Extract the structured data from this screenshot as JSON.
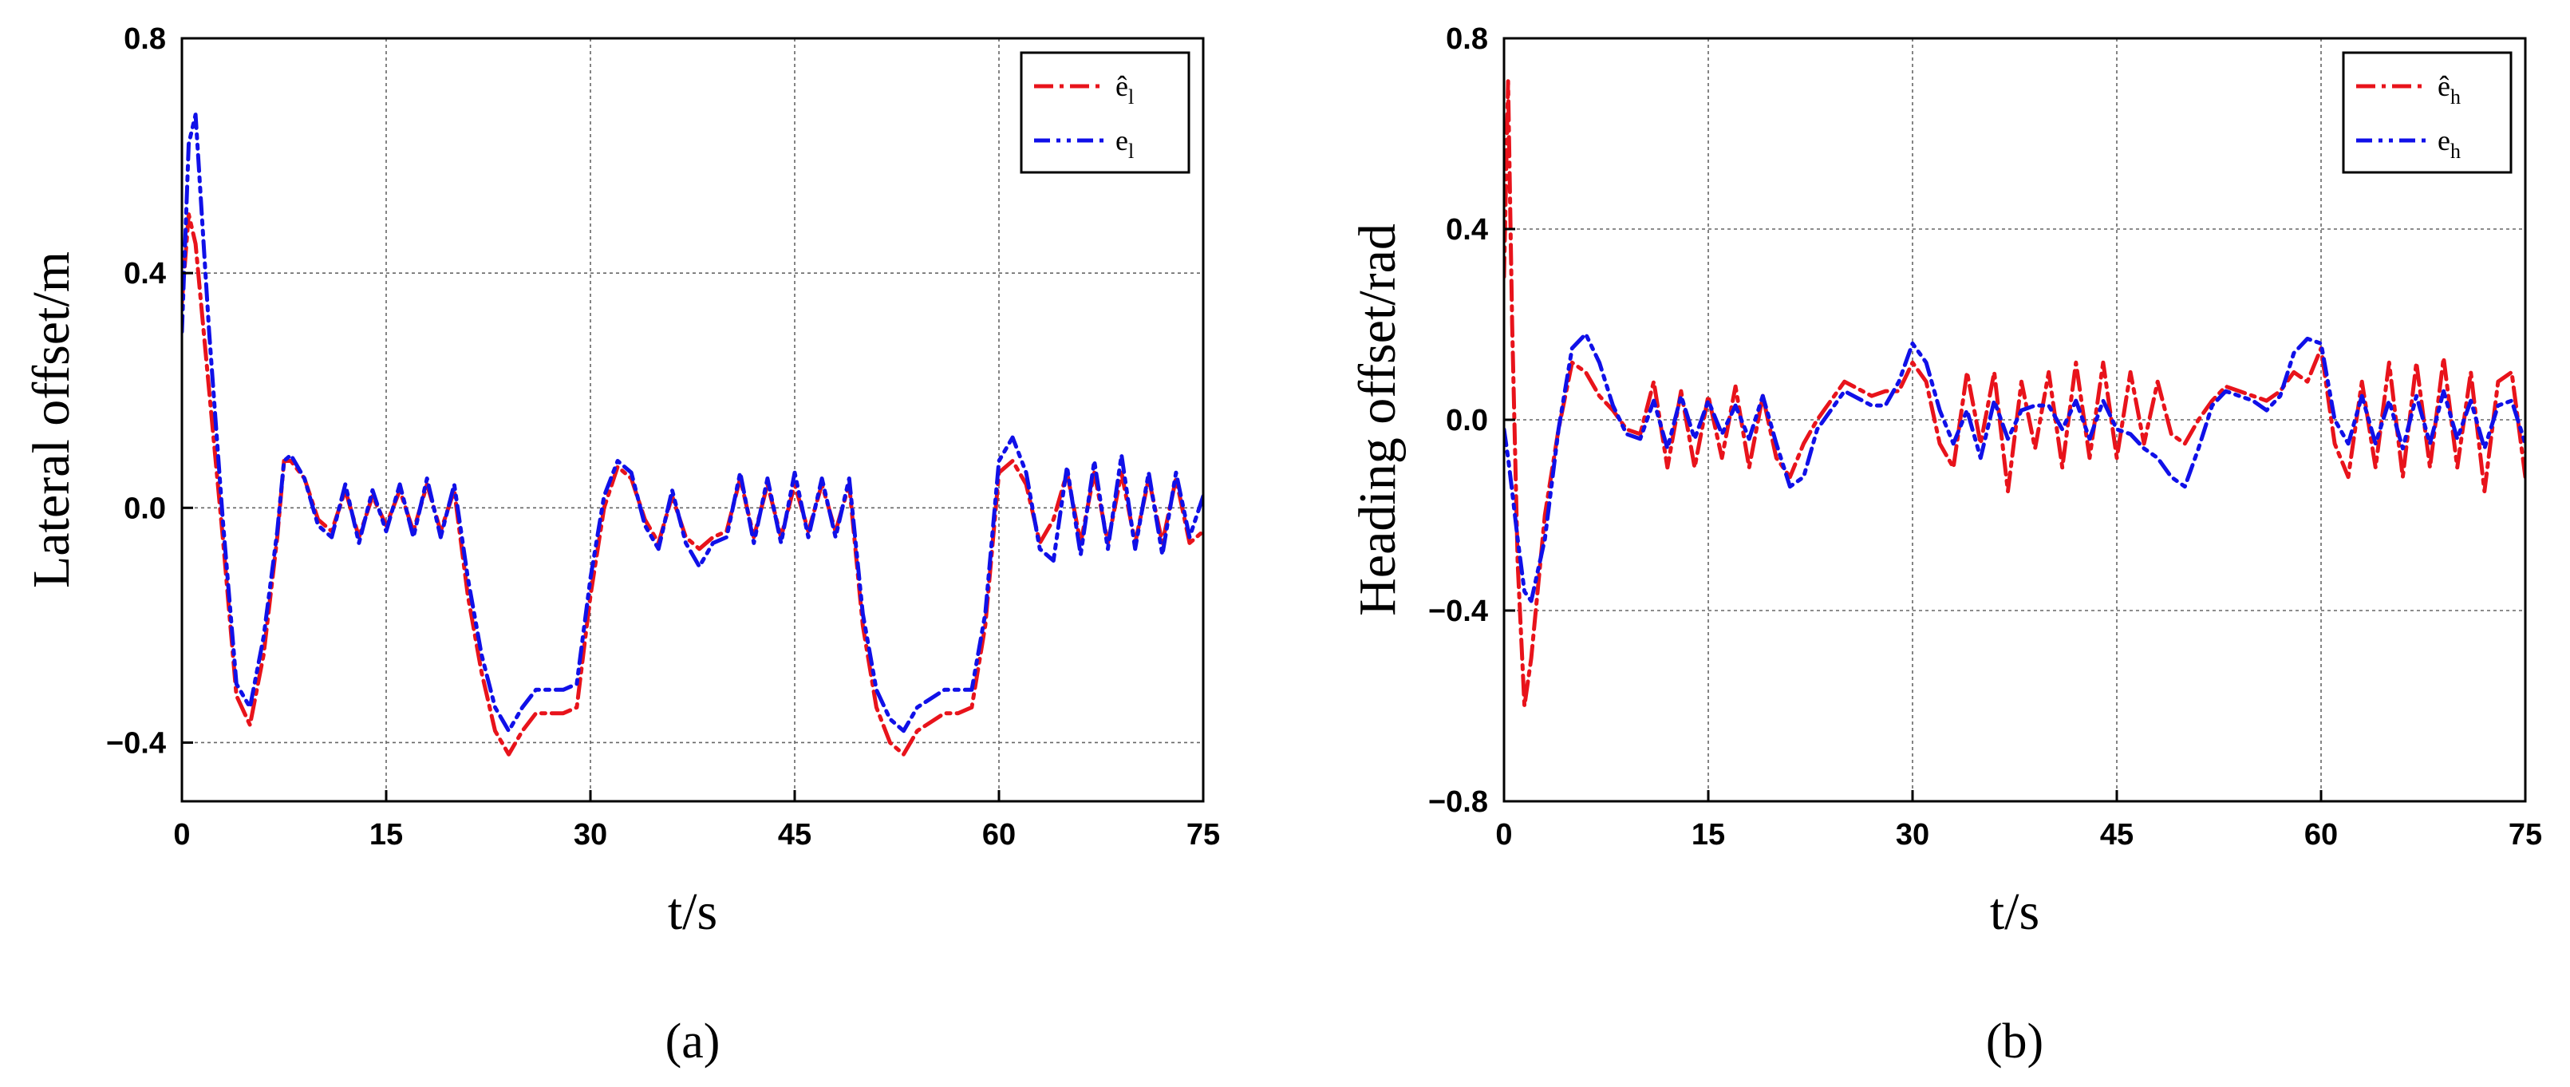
{
  "chart_data": [
    {
      "type": "line",
      "panel_label": "(a)",
      "xlabel": "t/s",
      "ylabel": "Lateral offset/m",
      "xlim": [
        0,
        75
      ],
      "ylim": [
        -0.5,
        0.8
      ],
      "xticks": [
        0,
        15,
        30,
        45,
        60,
        75
      ],
      "xtick_labels": [
        "0",
        "15",
        "30",
        "45",
        "60",
        "75"
      ],
      "yticks": [
        -0.4,
        0.0,
        0.4,
        0.8
      ],
      "ytick_labels": [
        "−0.4",
        "0.0",
        "0.4",
        "0.8"
      ],
      "grid": true,
      "legend_position": "top-right",
      "series": [
        {
          "name": "ê",
          "sub": "l",
          "color": "#e8131b",
          "dash": "24 8 5 8",
          "x": [
            0,
            0.5,
            1,
            2,
            3,
            4,
            5,
            6,
            7,
            7.5,
            8,
            9,
            10,
            11,
            12,
            13,
            14,
            15,
            16,
            17,
            18,
            19,
            20,
            21,
            22,
            23,
            24,
            25,
            26,
            28,
            29,
            30,
            31,
            32,
            33,
            34,
            35,
            36,
            37,
            38,
            39,
            40,
            41,
            42,
            43,
            44,
            45,
            46,
            47,
            48,
            49,
            50,
            51,
            52,
            53,
            54,
            56,
            57,
            58,
            59,
            60,
            61,
            62,
            63,
            64,
            65,
            66,
            67,
            68,
            69,
            70,
            71,
            72,
            73,
            74,
            75
          ],
          "values": [
            0.35,
            0.5,
            0.45,
            0.2,
            -0.05,
            -0.32,
            -0.37,
            -0.25,
            -0.05,
            0.08,
            0.08,
            0.05,
            -0.02,
            -0.04,
            0.03,
            -0.05,
            0.02,
            -0.03,
            0.03,
            -0.04,
            0.04,
            -0.04,
            0.03,
            -0.15,
            -0.28,
            -0.38,
            -0.42,
            -0.38,
            -0.35,
            -0.35,
            -0.34,
            -0.15,
            0.0,
            0.07,
            0.05,
            -0.02,
            -0.06,
            0.02,
            -0.05,
            -0.07,
            -0.05,
            -0.04,
            0.05,
            -0.05,
            0.04,
            -0.05,
            0.04,
            -0.04,
            0.04,
            -0.04,
            0.04,
            -0.2,
            -0.34,
            -0.4,
            -0.42,
            -0.38,
            -0.35,
            -0.35,
            -0.34,
            -0.2,
            0.06,
            0.08,
            0.04,
            -0.06,
            -0.02,
            0.06,
            -0.06,
            0.06,
            -0.06,
            0.06,
            -0.06,
            0.05,
            -0.06,
            0.05,
            -0.06,
            -0.04
          ]
        },
        {
          "name": "e",
          "sub": "l",
          "color": "#1010e8",
          "dash": "20 8 5 8 5 8",
          "x": [
            0,
            0.5,
            1,
            2,
            3,
            4,
            5,
            6,
            7,
            7.5,
            8,
            9,
            10,
            11,
            12,
            13,
            14,
            15,
            16,
            17,
            18,
            19,
            20,
            21,
            22,
            23,
            24,
            25,
            26,
            28,
            29,
            30,
            31,
            32,
            33,
            34,
            35,
            36,
            37,
            38,
            39,
            40,
            41,
            42,
            43,
            44,
            45,
            46,
            47,
            48,
            49,
            50,
            51,
            52,
            53,
            54,
            56,
            57,
            58,
            59,
            60,
            61,
            62,
            63,
            64,
            65,
            66,
            67,
            68,
            69,
            70,
            71,
            72,
            73,
            74,
            75
          ],
          "values": [
            0.3,
            0.62,
            0.67,
            0.3,
            -0.02,
            -0.3,
            -0.34,
            -0.22,
            -0.04,
            0.08,
            0.09,
            0.05,
            -0.03,
            -0.05,
            0.04,
            -0.06,
            0.03,
            -0.04,
            0.04,
            -0.05,
            0.05,
            -0.05,
            0.04,
            -0.12,
            -0.25,
            -0.34,
            -0.38,
            -0.34,
            -0.31,
            -0.31,
            -0.3,
            -0.12,
            0.02,
            0.08,
            0.06,
            -0.03,
            -0.07,
            0.03,
            -0.06,
            -0.1,
            -0.06,
            -0.05,
            0.06,
            -0.06,
            0.05,
            -0.06,
            0.06,
            -0.05,
            0.05,
            -0.05,
            0.05,
            -0.18,
            -0.31,
            -0.36,
            -0.38,
            -0.34,
            -0.31,
            -0.31,
            -0.31,
            -0.18,
            0.08,
            0.12,
            0.06,
            -0.07,
            -0.09,
            0.07,
            -0.08,
            0.08,
            -0.07,
            0.09,
            -0.07,
            0.06,
            -0.08,
            0.06,
            -0.05,
            0.02
          ]
        }
      ]
    },
    {
      "type": "line",
      "panel_label": "(b)",
      "xlabel": "t/s",
      "ylabel": "Heading offset/rad",
      "xlim": [
        0,
        75
      ],
      "ylim": [
        -0.8,
        0.8
      ],
      "xticks": [
        0,
        15,
        30,
        45,
        60,
        75
      ],
      "xtick_labels": [
        "0",
        "15",
        "30",
        "45",
        "60",
        "75"
      ],
      "yticks": [
        -0.8,
        -0.4,
        0.0,
        0.4,
        0.8
      ],
      "ytick_labels": [
        "−0.8",
        "−0.4",
        "0.0",
        "0.4",
        "0.8"
      ],
      "grid": true,
      "legend_position": "top-right",
      "series": [
        {
          "name": "ê",
          "sub": "h",
          "color": "#e8131b",
          "dash": "24 8 5 8",
          "x": [
            0,
            0.3,
            0.6,
            1,
            1.5,
            2,
            3,
            4,
            5,
            6,
            7,
            8,
            9,
            10,
            11,
            12,
            13,
            14,
            15,
            16,
            17,
            18,
            19,
            20,
            21,
            22,
            23,
            25,
            27,
            28,
            29,
            30,
            31,
            32,
            33,
            34,
            35,
            36,
            37,
            38,
            39,
            40,
            41,
            42,
            43,
            44,
            45,
            46,
            47,
            48,
            49,
            50,
            51,
            52,
            53,
            54,
            55,
            56,
            57,
            58,
            59,
            60,
            61,
            62,
            63,
            64,
            65,
            66,
            67,
            68,
            69,
            70,
            71,
            72,
            73,
            74,
            75
          ],
          "values": [
            0.3,
            0.71,
            0.2,
            -0.3,
            -0.6,
            -0.5,
            -0.2,
            -0.02,
            0.12,
            0.1,
            0.05,
            0.02,
            -0.02,
            -0.03,
            0.08,
            -0.1,
            0.06,
            -0.1,
            0.05,
            -0.08,
            0.07,
            -0.1,
            0.05,
            -0.08,
            -0.12,
            -0.05,
            0.0,
            0.08,
            0.05,
            0.06,
            0.06,
            0.12,
            0.08,
            -0.05,
            -0.1,
            0.1,
            -0.05,
            0.1,
            -0.15,
            0.08,
            -0.06,
            0.1,
            -0.1,
            0.12,
            -0.08,
            0.12,
            -0.08,
            0.1,
            -0.05,
            0.08,
            -0.03,
            -0.05,
            0.0,
            0.04,
            0.07,
            0.06,
            0.05,
            0.04,
            0.06,
            0.1,
            0.08,
            0.15,
            -0.05,
            -0.12,
            0.08,
            -0.1,
            0.12,
            -0.12,
            0.12,
            -0.1,
            0.13,
            -0.1,
            0.1,
            -0.15,
            0.08,
            0.1,
            -0.12
          ]
        },
        {
          "name": "e",
          "sub": "h",
          "color": "#1010e8",
          "dash": "20 8 5 8 5 8",
          "x": [
            0,
            0.3,
            0.6,
            1,
            1.5,
            2,
            3,
            4,
            5,
            6,
            7,
            8,
            9,
            10,
            11,
            12,
            13,
            14,
            15,
            16,
            17,
            18,
            19,
            20,
            21,
            22,
            23,
            25,
            27,
            28,
            29,
            30,
            31,
            32,
            33,
            34,
            35,
            36,
            37,
            38,
            39,
            40,
            41,
            42,
            43,
            44,
            45,
            46,
            47,
            48,
            49,
            50,
            51,
            52,
            53,
            54,
            55,
            56,
            57,
            58,
            59,
            60,
            61,
            62,
            63,
            64,
            65,
            66,
            67,
            68,
            69,
            70,
            71,
            72,
            73,
            74,
            75
          ],
          "values": [
            -0.02,
            -0.08,
            -0.15,
            -0.25,
            -0.36,
            -0.38,
            -0.25,
            -0.02,
            0.15,
            0.18,
            0.12,
            0.03,
            -0.03,
            -0.04,
            0.04,
            -0.06,
            0.05,
            -0.04,
            0.04,
            -0.03,
            0.03,
            -0.04,
            0.05,
            -0.05,
            -0.14,
            -0.12,
            -0.02,
            0.06,
            0.03,
            0.03,
            0.08,
            0.16,
            0.12,
            0.02,
            -0.05,
            0.02,
            -0.08,
            0.04,
            -0.04,
            0.02,
            0.03,
            0.03,
            -0.02,
            0.04,
            -0.04,
            0.04,
            -0.02,
            -0.03,
            -0.06,
            -0.08,
            -0.12,
            -0.14,
            -0.06,
            0.03,
            0.06,
            0.05,
            0.04,
            0.02,
            0.05,
            0.14,
            0.17,
            0.16,
            0.0,
            -0.05,
            0.05,
            -0.05,
            0.04,
            -0.06,
            0.05,
            -0.05,
            0.06,
            -0.04,
            0.04,
            -0.06,
            0.03,
            0.04,
            -0.05
          ]
        }
      ]
    }
  ]
}
